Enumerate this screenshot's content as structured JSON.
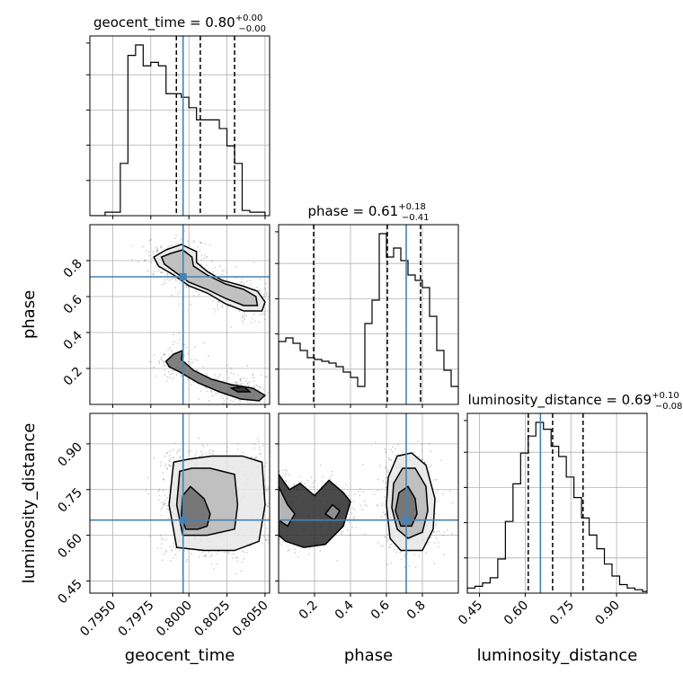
{
  "chart_data": {
    "type": "corner",
    "parameters": [
      {
        "name": "geocent_time",
        "label": "geocent_time",
        "range": [
          0.7935,
          0.8053
        ],
        "ticks": [
          0.795,
          0.7975,
          0.8,
          0.8025,
          0.805
        ],
        "tick_labels": [
          "0.7950",
          "0.7975",
          "0.8000",
          "0.8025",
          "0.8050"
        ],
        "title_prefix": "geocent_time = ",
        "median": "0.80",
        "plus": "+0.00",
        "minus": "−0.00",
        "quantiles": [
          0.79918,
          0.80075,
          0.803
        ],
        "truth": 0.79962
      },
      {
        "name": "phase",
        "label": "phase",
        "range": [
          0.0,
          1.0
        ],
        "ticks": [
          0.2,
          0.4,
          0.6,
          0.8
        ],
        "tick_labels": [
          "0.2",
          "0.4",
          "0.6",
          "0.8"
        ],
        "title_prefix": "phase = ",
        "median": "0.61",
        "plus": "+0.18",
        "minus": "−0.41",
        "quantiles": [
          0.195,
          0.605,
          0.79
        ],
        "truth": 0.71
      },
      {
        "name": "luminosity_distance",
        "label": "luminosity_distance",
        "range": [
          0.41,
          1.0
        ],
        "ticks": [
          0.45,
          0.6,
          0.75,
          0.9
        ],
        "tick_labels": [
          "0.45",
          "0.60",
          "0.75",
          "0.90"
        ],
        "title_prefix": "luminosity_distance = ",
        "median": "0.69",
        "plus": "+0.10",
        "minus": "−0.08",
        "quantiles": [
          0.61,
          0.69,
          0.79
        ],
        "truth": 0.65
      }
    ],
    "histograms": {
      "geocent_time": {
        "edges_start": 0.7935,
        "bin_width": 0.0005,
        "counts": [
          0,
          0,
          0.02,
          0.02,
          0.3,
          0.92,
          0.98,
          0.86,
          0.88,
          0.86,
          0.7,
          0.7,
          0.68,
          0.62,
          0.55,
          0.55,
          0.55,
          0.5,
          0.4,
          0.3,
          0.03,
          0.02,
          0.02
        ]
      },
      "phase": {
        "edges_start": 0.0,
        "bin_width": 0.04,
        "counts": [
          0.35,
          0.37,
          0.34,
          0.3,
          0.26,
          0.25,
          0.24,
          0.23,
          0.21,
          0.18,
          0.15,
          0.1,
          0.45,
          0.58,
          0.95,
          0.82,
          0.87,
          0.8,
          0.72,
          0.69,
          0.65,
          0.49,
          0.3,
          0.19,
          0.1
        ]
      },
      "luminosity_distance": {
        "edges_start": 0.41,
        "bin_width": 0.025,
        "counts": [
          0.03,
          0.04,
          0.06,
          0.09,
          0.2,
          0.42,
          0.64,
          0.82,
          0.92,
          1.0,
          0.96,
          0.86,
          0.8,
          0.68,
          0.56,
          0.44,
          0.34,
          0.26,
          0.17,
          0.1,
          0.05,
          0.03,
          0.02,
          0.01
        ]
      }
    },
    "pairs": [
      {
        "x": "geocent_time",
        "y": "phase",
        "contours": [
          [
            [
              0.7985,
              0.86
            ],
            [
              0.7995,
              0.89
            ],
            [
              0.8005,
              0.85
            ],
            [
              0.8005,
              0.79
            ],
            [
              0.8012,
              0.74
            ],
            [
              0.8022,
              0.69
            ],
            [
              0.8035,
              0.66
            ],
            [
              0.8045,
              0.63
            ],
            [
              0.805,
              0.57
            ],
            [
              0.8048,
              0.52
            ],
            [
              0.8036,
              0.52
            ],
            [
              0.8024,
              0.56
            ],
            [
              0.8012,
              0.62
            ],
            [
              0.8,
              0.66
            ],
            [
              0.799,
              0.72
            ],
            [
              0.798,
              0.77
            ],
            [
              0.7977,
              0.82
            ]
          ],
          [
            [
              0.7988,
              0.84
            ],
            [
              0.7996,
              0.86
            ],
            [
              0.8002,
              0.82
            ],
            [
              0.8003,
              0.77
            ],
            [
              0.8012,
              0.72
            ],
            [
              0.8024,
              0.67
            ],
            [
              0.8036,
              0.64
            ],
            [
              0.8044,
              0.6
            ],
            [
              0.8045,
              0.55
            ],
            [
              0.8036,
              0.55
            ],
            [
              0.8024,
              0.59
            ],
            [
              0.8012,
              0.64
            ],
            [
              0.8,
              0.68
            ],
            [
              0.7992,
              0.73
            ],
            [
              0.7984,
              0.78
            ],
            [
              0.7982,
              0.82
            ]
          ],
          [
            [
              0.7985,
              0.24
            ],
            [
              0.799,
              0.28
            ],
            [
              0.7996,
              0.3
            ],
            [
              0.7995,
              0.25
            ],
            [
              0.8003,
              0.19
            ],
            [
              0.8015,
              0.14
            ],
            [
              0.8028,
              0.11
            ],
            [
              0.8042,
              0.09
            ],
            [
              0.805,
              0.05
            ],
            [
              0.8046,
              0.02
            ],
            [
              0.8034,
              0.03
            ],
            [
              0.802,
              0.07
            ],
            [
              0.8006,
              0.12
            ],
            [
              0.7994,
              0.18
            ],
            [
              0.7987,
              0.21
            ]
          ],
          [
            [
              0.8028,
              0.09
            ],
            [
              0.8036,
              0.1
            ],
            [
              0.804,
              0.07
            ],
            [
              0.8032,
              0.07
            ]
          ]
        ]
      },
      {
        "x": "geocent_time",
        "y": "luminosity_distance",
        "contours": [
          [
            [
              0.7987,
              0.7
            ],
            [
              0.799,
              0.84
            ],
            [
              0.8,
              0.85
            ],
            [
              0.8015,
              0.86
            ],
            [
              0.8035,
              0.86
            ],
            [
              0.8048,
              0.84
            ],
            [
              0.805,
              0.7
            ],
            [
              0.8046,
              0.58
            ],
            [
              0.803,
              0.55
            ],
            [
              0.801,
              0.55
            ],
            [
              0.7992,
              0.56
            ]
          ],
          [
            [
              0.7992,
              0.7
            ],
            [
              0.7994,
              0.81
            ],
            [
              0.8002,
              0.82
            ],
            [
              0.8014,
              0.82
            ],
            [
              0.803,
              0.8
            ],
            [
              0.8032,
              0.7
            ],
            [
              0.803,
              0.62
            ],
            [
              0.8012,
              0.6
            ],
            [
              0.7996,
              0.6
            ]
          ],
          [
            [
              0.7995,
              0.66
            ],
            [
              0.7996,
              0.73
            ],
            [
              0.8001,
              0.76
            ],
            [
              0.801,
              0.72
            ],
            [
              0.8014,
              0.67
            ],
            [
              0.8012,
              0.63
            ],
            [
              0.8006,
              0.62
            ],
            [
              0.7998,
              0.62
            ]
          ]
        ]
      },
      {
        "x": "phase",
        "y": "luminosity_distance",
        "contours": [
          [
            [
              0.6,
              0.7
            ],
            [
              0.61,
              0.79
            ],
            [
              0.66,
              0.86
            ],
            [
              0.74,
              0.87
            ],
            [
              0.82,
              0.83
            ],
            [
              0.87,
              0.72
            ],
            [
              0.86,
              0.62
            ],
            [
              0.8,
              0.55
            ],
            [
              0.68,
              0.55
            ],
            [
              0.62,
              0.59
            ]
          ],
          [
            [
              0.63,
              0.69
            ],
            [
              0.64,
              0.77
            ],
            [
              0.69,
              0.82
            ],
            [
              0.76,
              0.82
            ],
            [
              0.82,
              0.76
            ],
            [
              0.83,
              0.68
            ],
            [
              0.8,
              0.61
            ],
            [
              0.72,
              0.59
            ],
            [
              0.66,
              0.62
            ]
          ],
          [
            [
              0.65,
              0.68
            ],
            [
              0.67,
              0.74
            ],
            [
              0.72,
              0.76
            ],
            [
              0.76,
              0.72
            ],
            [
              0.77,
              0.67
            ],
            [
              0.74,
              0.63
            ],
            [
              0.68,
              0.63
            ]
          ],
          [
            [
              0.0,
              0.8
            ],
            [
              0.06,
              0.75
            ],
            [
              0.12,
              0.77
            ],
            [
              0.2,
              0.73
            ],
            [
              0.28,
              0.78
            ],
            [
              0.36,
              0.74
            ],
            [
              0.4,
              0.71
            ],
            [
              0.36,
              0.63
            ],
            [
              0.26,
              0.57
            ],
            [
              0.14,
              0.56
            ],
            [
              0.04,
              0.58
            ],
            [
              0.0,
              0.6
            ]
          ],
          [
            [
              0.0,
              0.76
            ],
            [
              0.05,
              0.7
            ],
            [
              0.09,
              0.67
            ],
            [
              0.05,
              0.63
            ],
            [
              0.0,
              0.65
            ]
          ],
          [
            [
              0.26,
              0.67
            ],
            [
              0.3,
              0.7
            ],
            [
              0.34,
              0.68
            ],
            [
              0.31,
              0.65
            ]
          ]
        ]
      }
    ]
  }
}
